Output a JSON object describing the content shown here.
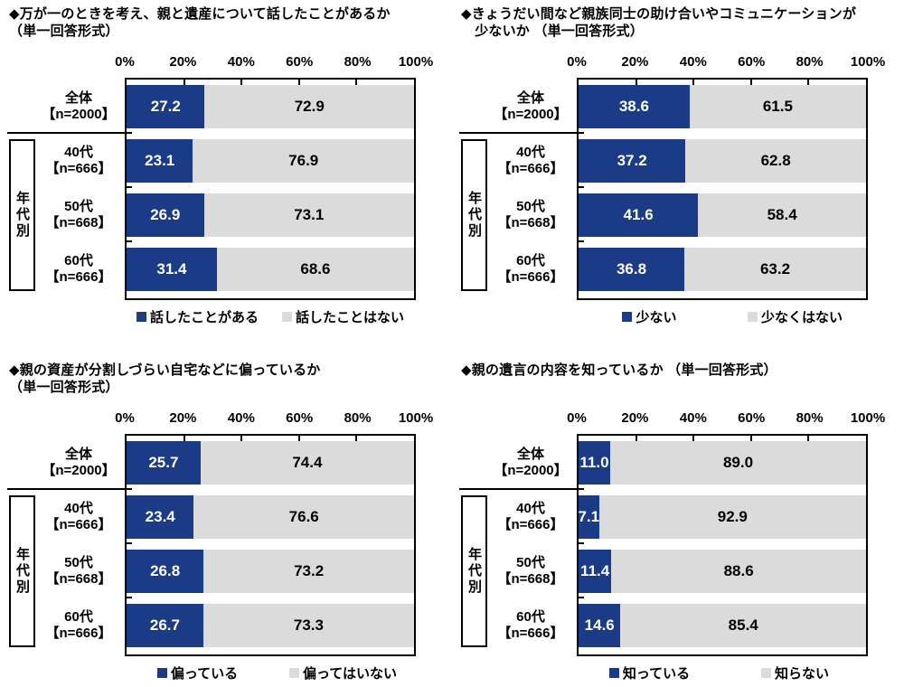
{
  "layout": {
    "background": "#ffffff",
    "x_ticks": [
      "0%",
      "20%",
      "40%",
      "60%",
      "80%",
      "100%"
    ],
    "group_label": "年代別",
    "category_lines": [
      [
        "全体",
        "【n=2000】"
      ],
      [
        "40代",
        "【n=666】"
      ],
      [
        "50代",
        "【n=668】"
      ],
      [
        "60代",
        "【n=666】"
      ]
    ]
  },
  "colors": {
    "primary": "#1C3B87",
    "secondary": "#DBDBDB",
    "border": "#000000",
    "value_text_on_primary": "#FFFFFF",
    "value_text_on_secondary": "#000000"
  },
  "chart_data": [
    {
      "type": "bar",
      "stacked": true,
      "orientation": "horizontal",
      "title": "◆万が一のときを考え、親と遺産について話したことがあるか（単一回答形式）",
      "title_lines": [
        "◆万が一のときを考え、親と遺産について話したことがあるか",
        "（単一回答形式）"
      ],
      "categories": [
        "全体【n=2000】",
        "40代【n=666】",
        "50代【n=668】",
        "60代【n=666】"
      ],
      "xlim": [
        0,
        100
      ],
      "x_tick_labels": [
        "0%",
        "20%",
        "40%",
        "60%",
        "80%",
        "100%"
      ],
      "legend_position": "bottom",
      "series": [
        {
          "name": "話したことがある",
          "color": "#1C3B87",
          "values": [
            27.2,
            23.1,
            26.9,
            31.4
          ],
          "labels": [
            "27.2",
            "23.1",
            "26.9",
            "31.4"
          ]
        },
        {
          "name": "話したことはない",
          "color": "#DBDBDB",
          "values": [
            72.9,
            76.9,
            73.1,
            68.6
          ],
          "labels": [
            "72.9",
            "76.9",
            "73.1",
            "68.6"
          ]
        }
      ]
    },
    {
      "type": "bar",
      "stacked": true,
      "orientation": "horizontal",
      "title": "◆きょうだい間など親族同士の助け合いやコミュニケーションが少ないか （単一回答形式）",
      "title_lines": [
        "◆きょうだい間など親族同士の助け合いやコミュニケーションが",
        "　少ないか （単一回答形式）"
      ],
      "categories": [
        "全体【n=2000】",
        "40代【n=666】",
        "50代【n=668】",
        "60代【n=666】"
      ],
      "xlim": [
        0,
        100
      ],
      "x_tick_labels": [
        "0%",
        "20%",
        "40%",
        "60%",
        "80%",
        "100%"
      ],
      "legend_position": "bottom",
      "series": [
        {
          "name": "少ない",
          "color": "#1C3B87",
          "values": [
            38.6,
            37.2,
            41.6,
            36.8
          ],
          "labels": [
            "38.6",
            "37.2",
            "41.6",
            "36.8"
          ]
        },
        {
          "name": "少なくはない",
          "color": "#DBDBDB",
          "values": [
            61.5,
            62.8,
            58.4,
            63.2
          ],
          "labels": [
            "61.5",
            "62.8",
            "58.4",
            "63.2"
          ]
        }
      ]
    },
    {
      "type": "bar",
      "stacked": true,
      "orientation": "horizontal",
      "title": "◆親の資産が分割しづらい自宅などに偏っているか（単一回答形式）",
      "title_lines": [
        "◆親の資産が分割しづらい自宅などに偏っているか",
        "（単一回答形式）"
      ],
      "categories": [
        "全体【n=2000】",
        "40代【n=666】",
        "50代【n=668】",
        "60代【n=666】"
      ],
      "xlim": [
        0,
        100
      ],
      "x_tick_labels": [
        "0%",
        "20%",
        "40%",
        "60%",
        "80%",
        "100%"
      ],
      "legend_position": "bottom",
      "series": [
        {
          "name": "偏っている",
          "color": "#1C3B87",
          "values": [
            25.7,
            23.4,
            26.8,
            26.7
          ],
          "labels": [
            "25.7",
            "23.4",
            "26.8",
            "26.7"
          ]
        },
        {
          "name": "偏ってはいない",
          "color": "#DBDBDB",
          "values": [
            74.4,
            76.6,
            73.2,
            73.3
          ],
          "labels": [
            "74.4",
            "76.6",
            "73.2",
            "73.3"
          ]
        }
      ]
    },
    {
      "type": "bar",
      "stacked": true,
      "orientation": "horizontal",
      "title": "◆親の遺言の内容を知っているか （単一回答形式）",
      "title_lines": [
        "◆親の遺言の内容を知っているか （単一回答形式）",
        ""
      ],
      "categories": [
        "全体【n=2000】",
        "40代【n=666】",
        "50代【n=668】",
        "60代【n=666】"
      ],
      "xlim": [
        0,
        100
      ],
      "x_tick_labels": [
        "0%",
        "20%",
        "40%",
        "60%",
        "80%",
        "100%"
      ],
      "legend_position": "bottom",
      "series": [
        {
          "name": "知っている",
          "color": "#1C3B87",
          "values": [
            11.0,
            7.1,
            11.4,
            14.6
          ],
          "labels": [
            "11.0",
            "7.1",
            "11.4",
            "14.6"
          ]
        },
        {
          "name": "知らない",
          "color": "#DBDBDB",
          "values": [
            89.0,
            92.9,
            88.6,
            85.4
          ],
          "labels": [
            "89.0",
            "92.9",
            "88.6",
            "85.4"
          ]
        }
      ]
    }
  ]
}
